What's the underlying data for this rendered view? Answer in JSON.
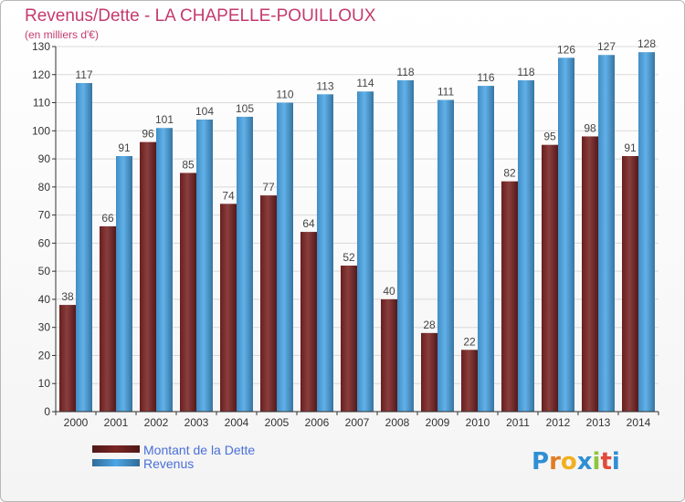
{
  "header": {
    "title": "Revenus/Dette - LA CHAPELLE-POUILLOUX",
    "subtitle": "(en milliers d'€)"
  },
  "legend": {
    "items": [
      {
        "label": "Montant de la Dette",
        "color": "#7a2424"
      },
      {
        "label": "Revenus",
        "color": "#4ca6e6"
      }
    ]
  },
  "logo": {
    "text": "Proxiti",
    "letter_colors": [
      "#2f8fd4",
      "#e07d24",
      "#f2b01e",
      "#2f8fd4",
      "#8dc63f",
      "#e14b3b",
      "#2f8fd4"
    ]
  },
  "colors": {
    "text": "#c43a6e",
    "axis": "#333333",
    "grid": "#d9d9d9",
    "value_label": "#444444"
  },
  "chart_data": {
    "type": "bar",
    "categories": [
      "2000",
      "2001",
      "2002",
      "2003",
      "2004",
      "2005",
      "2006",
      "2007",
      "2008",
      "2009",
      "2010",
      "2011",
      "2012",
      "2013",
      "2014"
    ],
    "series": [
      {
        "name": "Montant de la Dette",
        "color": "#7a2424",
        "values": [
          38,
          66,
          96,
          85,
          74,
          77,
          64,
          52,
          40,
          28,
          22,
          82,
          95,
          98,
          91
        ]
      },
      {
        "name": "Revenus",
        "color": "#4ca6e6",
        "values": [
          117,
          91,
          101,
          104,
          105,
          110,
          113,
          114,
          118,
          111,
          116,
          118,
          126,
          127,
          128
        ]
      }
    ],
    "ylim": [
      0,
      130
    ],
    "yticks": [
      0,
      10,
      20,
      30,
      40,
      50,
      60,
      70,
      80,
      90,
      100,
      110,
      120,
      130
    ],
    "grid": true
  }
}
